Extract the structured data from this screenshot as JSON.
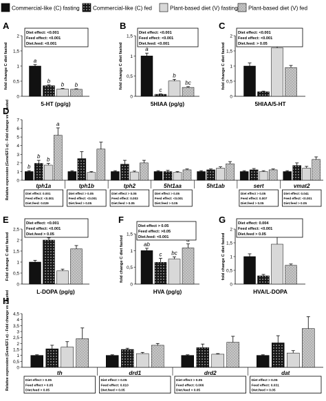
{
  "legend": [
    {
      "label": "Commercial-like (C) fasting",
      "pattern": "black"
    },
    {
      "label": "Commercial-like (C) fed",
      "pattern": "dots"
    },
    {
      "label": "Plant-based diet (V) fasting",
      "pattern": "light"
    },
    {
      "label": "Plant-based diet (V) fed",
      "pattern": "grid"
    }
  ],
  "colors": {
    "black": "#111111",
    "light": "#d8d8d8",
    "grid": "#b0b0b0",
    "dots_bg": "#161616",
    "dots_fg": "#e8e8e8",
    "box_border": "#000000"
  },
  "chart_data": [
    {
      "panel": "A",
      "type": "bar",
      "ylabel": "fold change C diet fasted",
      "yticks": [
        "0",
        "0,5",
        "1",
        "1,5",
        "2"
      ],
      "ylim": [
        0,
        2
      ],
      "stats": [
        "Diet effect: <0.001",
        "Feed effect: <0.001",
        "Diet.feed: <0.001"
      ],
      "groups": [
        {
          "label": "5-HT (pg/g)",
          "values": [
            1.0,
            0.35,
            0.24,
            0.23
          ],
          "errors": [
            0.05,
            0.03,
            0.02,
            0.02
          ],
          "letters": [
            "a",
            "b",
            "b",
            "b"
          ]
        }
      ]
    },
    {
      "panel": "B",
      "type": "bar",
      "ylabel": "fold change C diet fasted",
      "yticks": [
        "0",
        "0,5",
        "1",
        "1,5"
      ],
      "ylim": [
        0,
        1.5
      ],
      "stats": [
        "Diet effect: <0.001",
        "Feed effect: <0.001",
        "Diet.feed: <0.001"
      ],
      "groups": [
        {
          "label": "5HIAA (pg/g)",
          "values": [
            1.0,
            0.05,
            0.38,
            0.22
          ],
          "errors": [
            0.07,
            0.01,
            0.04,
            0.02
          ],
          "letters": [
            "a",
            "c",
            "b",
            "bc"
          ]
        }
      ]
    },
    {
      "panel": "C",
      "type": "bar",
      "ylabel": "fold change C diet fasted",
      "yticks": [
        "0",
        "0,5",
        "1",
        "1,5",
        "2"
      ],
      "ylim": [
        0,
        2
      ],
      "stats": [
        "Diet effect: <0.001",
        "Feed effect: <0.001",
        "Diet.feed: > 0.05"
      ],
      "groups": [
        {
          "label": "5HIAA/5-HT",
          "values": [
            1.0,
            0.15,
            1.6,
            0.95
          ],
          "errors": [
            0.1,
            0.02,
            0.25,
            0.07
          ],
          "letters": []
        }
      ]
    },
    {
      "panel": "D",
      "type": "bar",
      "ylabel": "Relative expression (Gene/EF1 α) - Fold change vs C fasted",
      "yticks": [
        "0",
        "1",
        "2",
        "3",
        "4",
        "5",
        "6",
        "7"
      ],
      "ylim": [
        0,
        7
      ],
      "groups": [
        {
          "label": "tph1a",
          "values": [
            1.0,
            1.95,
            1.75,
            5.2
          ],
          "errors": [
            0.1,
            0.35,
            0.2,
            0.85
          ],
          "letters": [
            "b",
            "b",
            "b",
            "a"
          ],
          "stats": [
            "Diet effect: 0.001",
            "Feed effect: <0.001",
            "Diet.feed: 0.029"
          ]
        },
        {
          "label": "tph1b",
          "values": [
            1.0,
            2.5,
            0.9,
            3.6
          ],
          "errors": [
            0.1,
            0.8,
            0.1,
            0.8
          ],
          "letters": [],
          "stats": [
            "Diet effect > 0.05",
            "Feed effect: <0.001",
            "Diet.feed > 0.05"
          ]
        },
        {
          "label": "tph2",
          "values": [
            1.0,
            1.85,
            0.95,
            2.0
          ],
          "errors": [
            0.1,
            0.45,
            0.1,
            0.3
          ],
          "letters": [],
          "stats": [
            "Diet effect > 0.05",
            "Feed effect: 0.003",
            "Diet.feed > 0.05"
          ]
        },
        {
          "label": "5ht1aa",
          "values": [
            1.0,
            1.0,
            0.9,
            1.2
          ],
          "errors": [
            0.1,
            0.15,
            0.1,
            0.1
          ],
          "letters": [],
          "stats": [
            "Diet effect > 0.05",
            "Feed effect: <0.001",
            "Diet.feed > 0.05"
          ]
        },
        {
          "label": "5ht1ab",
          "values": [
            1.0,
            1.2,
            1.4,
            1.9
          ],
          "errors": [
            0.1,
            0.1,
            0.15,
            0.25
          ],
          "letters": [],
          "stats": []
        },
        {
          "label": "sert",
          "values": [
            1.0,
            1.2,
            1.0,
            1.2
          ],
          "errors": [
            0.1,
            0.15,
            0.1,
            0.1
          ],
          "letters": [],
          "stats": [
            "Diet effect > 0.05",
            "Feed effect: 0.007",
            "Diet.feed > 0.05"
          ]
        },
        {
          "label": "vmat2",
          "values": [
            1.0,
            1.7,
            1.4,
            2.4
          ],
          "errors": [
            0.1,
            0.3,
            0.2,
            0.3
          ],
          "letters": [],
          "stats": [
            "Diet effect: 0.041",
            "Feed effect: <0.001",
            "Diet.feed > 0.05"
          ]
        }
      ]
    },
    {
      "panel": "E",
      "type": "bar",
      "ylabel": "Fold change C diet fasted",
      "yticks": [
        "0",
        "0,5",
        "1",
        "1,5",
        "2",
        "2,5"
      ],
      "ylim": [
        0,
        2.5
      ],
      "stats": [
        "Diet effect: <0.001",
        "Feed effect: <0.001",
        "Diet.feed > 0.05"
      ],
      "groups": [
        {
          "label": "L-DOPA (pg/g)",
          "values": [
            1.0,
            2.0,
            0.6,
            1.6
          ],
          "errors": [
            0.08,
            0.1,
            0.08,
            0.15
          ],
          "letters": []
        }
      ]
    },
    {
      "panel": "F",
      "type": "bar",
      "ylabel": "fold change C diet fasted",
      "yticks": [
        "0",
        "0,5",
        "1",
        "1,5"
      ],
      "ylim": [
        0,
        1.5
      ],
      "stats": [
        "Diet effect > 0.05",
        "Feed effect: >0.05",
        "Diet.feed: <0.001"
      ],
      "groups": [
        {
          "label": "HVA (pg/g)",
          "values": [
            1.0,
            0.65,
            0.75,
            1.08
          ],
          "errors": [
            0.07,
            0.12,
            0.06,
            0.12
          ],
          "letters": [
            "ab",
            "c",
            "bc",
            "a"
          ]
        }
      ]
    },
    {
      "panel": "G",
      "type": "bar",
      "ylabel": "fold change C diet fasted",
      "yticks": [
        "0",
        "0,5",
        "1",
        "1,5",
        "2"
      ],
      "ylim": [
        0,
        2
      ],
      "stats": [
        "Diet effect: 0.004",
        "Feed effect: <0.001",
        "Diet.feed > 0.05"
      ],
      "groups": [
        {
          "label": "HVA/L-DOPA",
          "values": [
            1.0,
            0.3,
            1.45,
            0.68
          ],
          "errors": [
            0.1,
            0.05,
            0.35,
            0.05
          ],
          "letters": []
        }
      ]
    },
    {
      "panel": "H",
      "type": "bar",
      "ylabel": "Relative expression (Gene/EF1 α) - Fold change vs C fasted",
      "yticks": [
        "0",
        "0,5",
        "1",
        "1,5",
        "2",
        "2,5",
        "3",
        "3,5",
        "4",
        "4,5"
      ],
      "ylim": [
        0,
        4.5
      ],
      "groups": [
        {
          "label": "th",
          "values": [
            1.0,
            1.55,
            1.7,
            2.4
          ],
          "errors": [
            0.05,
            0.3,
            0.45,
            0.9
          ],
          "letters": [],
          "stats": [
            "Diet effect > 0.05",
            "Feed effect > 0.05",
            "Diet.feed > 0.05"
          ]
        },
        {
          "label": "drd1",
          "values": [
            1.0,
            1.5,
            1.15,
            1.85
          ],
          "errors": [
            0.05,
            0.1,
            0.1,
            0.15
          ],
          "letters": [],
          "stats": [
            "Diet effect > 0.05",
            "Feed effect: 0.010",
            "Diet.feed > 0.05"
          ]
        },
        {
          "label": "drd2",
          "values": [
            1.0,
            1.65,
            1.1,
            2.1
          ],
          "errors": [
            0.05,
            0.3,
            0.05,
            0.5
          ],
          "letters": [],
          "stats": [
            "Diet effect > 0.05",
            "Feed effect: 0.006",
            "Diet.feed > 0.05"
          ]
        },
        {
          "label": "dat",
          "values": [
            1.0,
            2.05,
            1.2,
            3.25
          ],
          "errors": [
            0.05,
            0.6,
            0.2,
            1.0
          ],
          "letters": [],
          "stats": [
            "Diet effect > 0.05",
            "Feed effect: 0.031",
            "Diet.feed > 0.05"
          ]
        }
      ]
    }
  ]
}
